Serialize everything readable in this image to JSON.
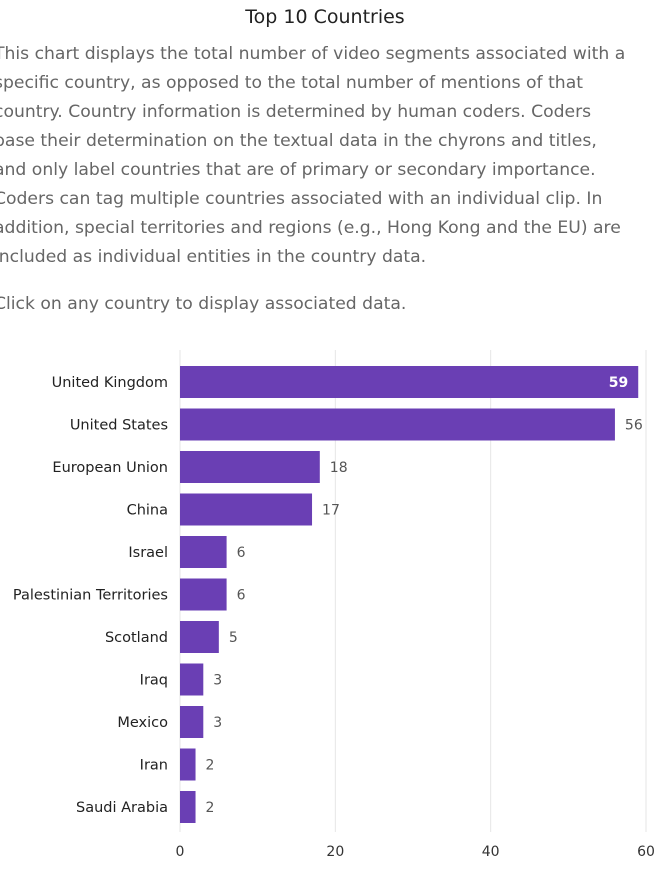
{
  "title": "Top 10 Countries",
  "description_lines": [
    "This chart displays the total number of video segments associated with a",
    "specific country, as opposed to the total number of mentions of that",
    "country. Country information is determined by human coders. Coders",
    "base their determination on the textual data in the chyrons and titles,",
    "and only label countries that are of primary or secondary importance.",
    "Coders can tag multiple countries associated with an individual clip. In",
    "addition, special territories and regions (e.g., Hong Kong and the EU) are",
    "included as individual entities in the country data."
  ],
  "click_hint": "Click on any country to display associated data.",
  "colors": {
    "bar": "#6a3fb4",
    "grid": "#e6e6e6"
  },
  "chart_data": {
    "type": "bar",
    "orientation": "horizontal",
    "categories": [
      "United Kingdom",
      "United States",
      "European Union",
      "China",
      "Israel",
      "Palestinian Territories",
      "Scotland",
      "Iraq",
      "Mexico",
      "Iran",
      "Saudi Arabia"
    ],
    "values": [
      59,
      56,
      18,
      17,
      6,
      6,
      5,
      3,
      3,
      2,
      2
    ],
    "xlim": [
      0,
      60
    ],
    "xticks": [
      "0",
      "20",
      "40",
      "60"
    ],
    "grid": true,
    "legend": "none"
  }
}
